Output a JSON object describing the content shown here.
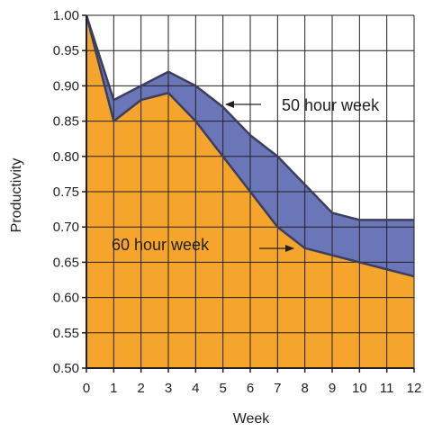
{
  "chart_data": {
    "type": "area",
    "x": [
      0,
      1,
      2,
      3,
      4,
      5,
      6,
      7,
      8,
      9,
      10,
      11,
      12
    ],
    "series": [
      {
        "name": "50 hour week",
        "values": [
          1.0,
          0.88,
          0.9,
          0.92,
          0.9,
          0.87,
          0.83,
          0.8,
          0.76,
          0.72,
          0.71,
          0.71,
          0.71
        ],
        "color": "#6b76b8"
      },
      {
        "name": "60 hour week",
        "values": [
          1.0,
          0.85,
          0.88,
          0.89,
          0.85,
          0.8,
          0.75,
          0.7,
          0.67,
          0.66,
          0.65,
          0.64,
          0.63
        ],
        "color": "#f5a52c"
      }
    ],
    "title": "",
    "xlabel": "Week",
    "ylabel": "Productivity",
    "xlim": [
      0,
      12
    ],
    "ylim": [
      0.5,
      1.0
    ],
    "x_ticks": [
      "0",
      "1",
      "2",
      "3",
      "4",
      "5",
      "6",
      "7",
      "8",
      "9",
      "10",
      "11",
      "12"
    ],
    "y_ticks": [
      "0.50",
      "0.55",
      "0.60",
      "0.65",
      "0.70",
      "0.75",
      "0.80",
      "0.85",
      "0.90",
      "0.95",
      "1.00"
    ],
    "grid": true,
    "annotations": [
      {
        "text": "50 hour week",
        "points_to": {
          "x": 5,
          "y": 0.87
        }
      },
      {
        "text": "60 hour week",
        "points_to": {
          "x": 7.5,
          "y": 0.685
        }
      }
    ]
  }
}
